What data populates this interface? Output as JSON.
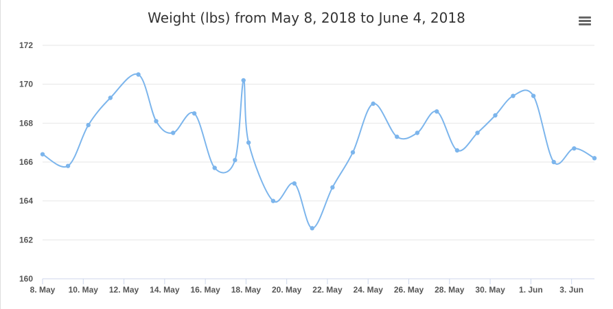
{
  "chart": {
    "title": "Weight (lbs) from May 8, 2018 to June 4, 2018"
  },
  "colors": {
    "line": "#7cb5ec",
    "grid": "#e6e6e6",
    "axis": "#ccd6eb"
  },
  "icons": {
    "menu": "hamburger-menu-icon"
  },
  "chart_data": {
    "type": "line",
    "title": "Weight (lbs) from May 8, 2018 to June 4, 2018",
    "xlabel": "",
    "ylabel": "",
    "ylim": [
      160,
      172
    ],
    "yticks": [
      160,
      162,
      164,
      166,
      168,
      170,
      172
    ],
    "x_range": [
      "2018-05-08",
      "2018-06-04"
    ],
    "xtick_labels": [
      {
        "date": "2018-05-08",
        "label": "8. May"
      },
      {
        "date": "2018-05-10",
        "label": "10. May"
      },
      {
        "date": "2018-05-12",
        "label": "12. May"
      },
      {
        "date": "2018-05-14",
        "label": "14. May"
      },
      {
        "date": "2018-05-16",
        "label": "16. May"
      },
      {
        "date": "2018-05-18",
        "label": "18. May"
      },
      {
        "date": "2018-05-20",
        "label": "20. May"
      },
      {
        "date": "2018-05-22",
        "label": "22. May"
      },
      {
        "date": "2018-05-24",
        "label": "24. May"
      },
      {
        "date": "2018-05-26",
        "label": "26. May"
      },
      {
        "date": "2018-05-28",
        "label": "28. May"
      },
      {
        "date": "2018-05-30",
        "label": "30. May"
      },
      {
        "date": "2018-06-01",
        "label": "1. Jun"
      },
      {
        "date": "2018-06-03",
        "label": "3. Jun"
      }
    ],
    "grid": true,
    "legend": false,
    "series": [
      {
        "points": [
          {
            "x": "2018-05-08 00:00",
            "y": 166.4
          },
          {
            "x": "2018-05-09 06:00",
            "y": 165.8
          },
          {
            "x": "2018-05-10 06:00",
            "y": 167.9
          },
          {
            "x": "2018-05-11 08:00",
            "y": 169.3
          },
          {
            "x": "2018-05-12 17:00",
            "y": 170.5
          },
          {
            "x": "2018-05-13 14:00",
            "y": 168.1
          },
          {
            "x": "2018-05-14 10:00",
            "y": 167.5
          },
          {
            "x": "2018-05-15 11:00",
            "y": 168.5
          },
          {
            "x": "2018-05-16 11:00",
            "y": 165.7
          },
          {
            "x": "2018-05-17 11:00",
            "y": 166.1
          },
          {
            "x": "2018-05-17 21:00",
            "y": 170.2
          },
          {
            "x": "2018-05-18 03:00",
            "y": 167.0
          },
          {
            "x": "2018-05-19 08:00",
            "y": 164.0
          },
          {
            "x": "2018-05-20 09:00",
            "y": 164.9
          },
          {
            "x": "2018-05-21 06:00",
            "y": 162.6
          },
          {
            "x": "2018-05-22 06:00",
            "y": 164.7
          },
          {
            "x": "2018-05-23 06:00",
            "y": 166.5
          },
          {
            "x": "2018-05-24 06:00",
            "y": 169.0
          },
          {
            "x": "2018-05-25 10:00",
            "y": 167.3
          },
          {
            "x": "2018-05-26 10:00",
            "y": 167.5
          },
          {
            "x": "2018-05-27 09:00",
            "y": 168.6
          },
          {
            "x": "2018-05-28 09:00",
            "y": 166.6
          },
          {
            "x": "2018-05-29 09:00",
            "y": 167.5
          },
          {
            "x": "2018-05-30 06:00",
            "y": 168.4
          },
          {
            "x": "2018-05-31 03:00",
            "y": 169.4
          },
          {
            "x": "2018-06-01 03:00",
            "y": 169.4
          },
          {
            "x": "2018-06-02 03:00",
            "y": 166.0
          },
          {
            "x": "2018-06-03 03:00",
            "y": 166.7
          },
          {
            "x": "2018-06-04 03:00",
            "y": 166.2
          }
        ]
      }
    ]
  }
}
